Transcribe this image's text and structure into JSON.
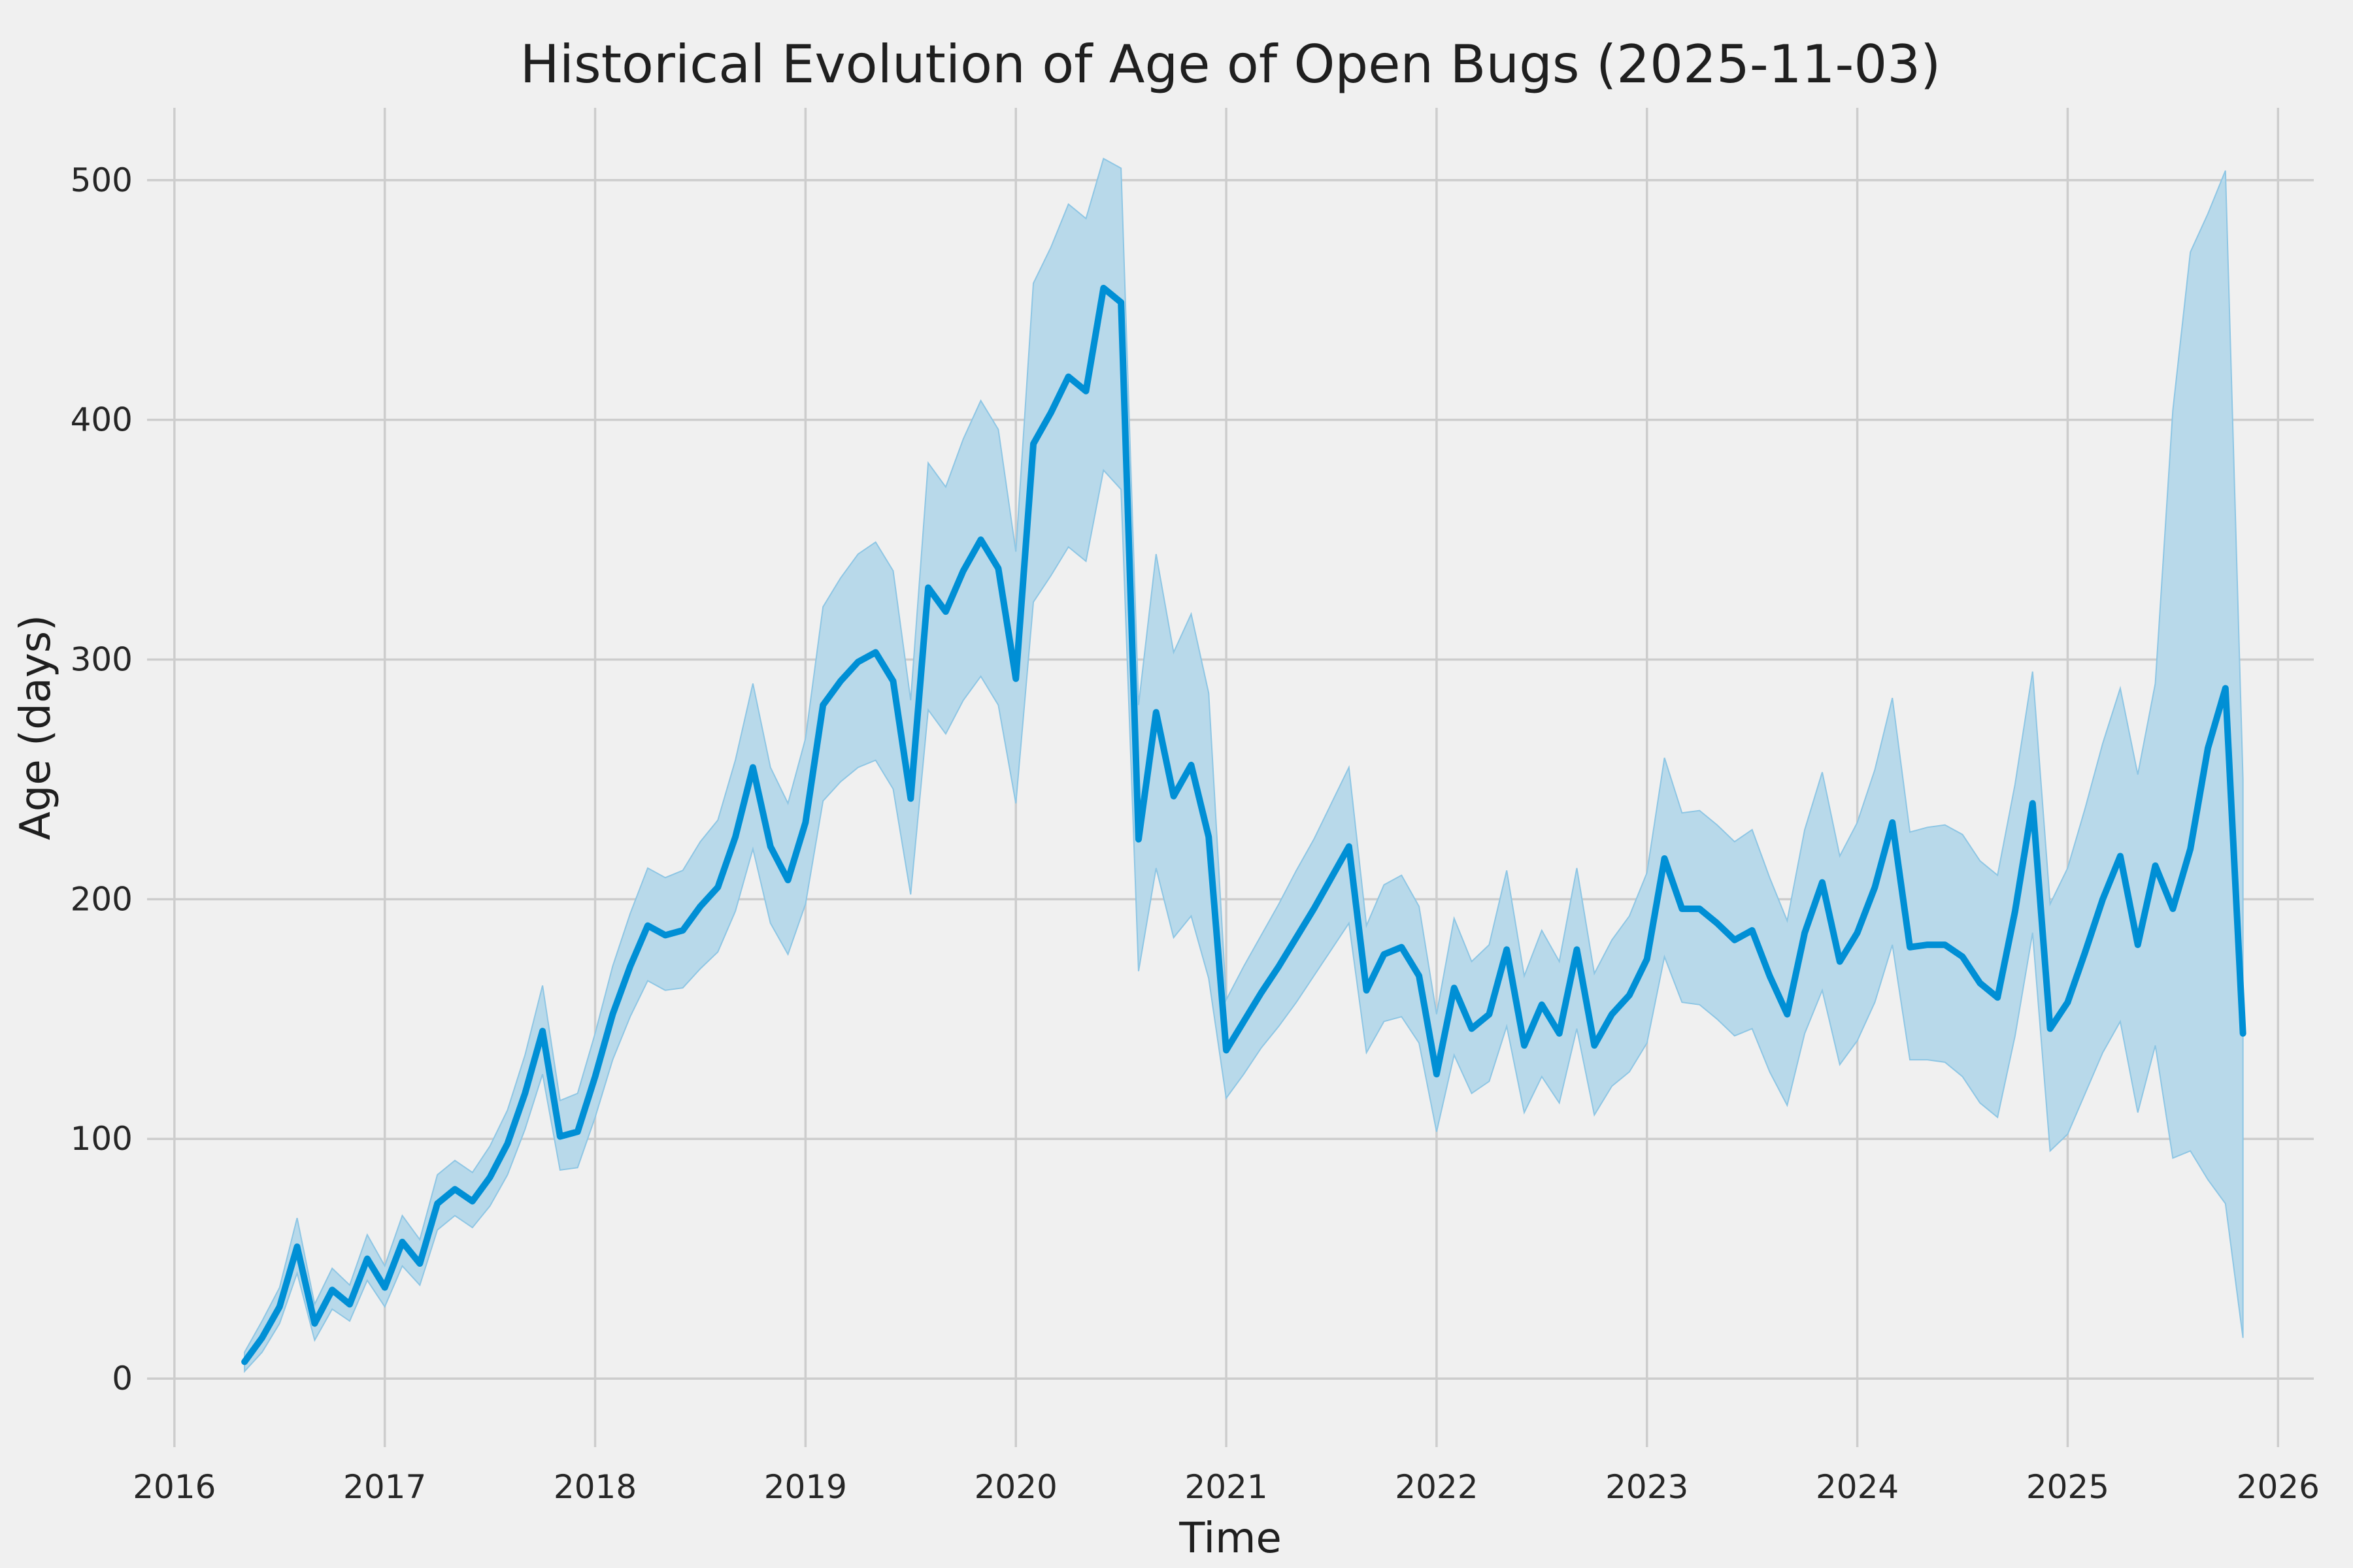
{
  "figure": {
    "background_color": "#f0f0f0",
    "grid_color": "#cdcdcd",
    "text_color": "#262626"
  },
  "chart_data": {
    "type": "line",
    "title": "Historical Evolution of Age of Open Bugs (2025-11-03)",
    "xlabel": "Time",
    "ylabel": "Age (days)",
    "legend_position": "none",
    "grid": true,
    "x_ticks": [
      2016,
      2017,
      2018,
      2019,
      2020,
      2021,
      2022,
      2023,
      2024,
      2025,
      2026
    ],
    "y_ticks": [
      0,
      100,
      200,
      300,
      400,
      500
    ],
    "xlim": [
      2015.87,
      2026.17
    ],
    "ylim": [
      -28.6,
      530.2
    ],
    "line_color": "#008FD5",
    "band_fill_color": "#b8d9ea",
    "band_edge_color": "#8ec6e4",
    "series": [
      {
        "name": "mean-open-bug-age",
        "style": "line-with-confidence-band",
        "dates": [
          "2016-05",
          "2016-06",
          "2016-07",
          "2016-08",
          "2016-09",
          "2016-10",
          "2016-11",
          "2016-12",
          "2017-01",
          "2017-02",
          "2017-03",
          "2017-04",
          "2017-05",
          "2017-06",
          "2017-07",
          "2017-08",
          "2017-09",
          "2017-10",
          "2017-11",
          "2017-12",
          "2018-01",
          "2018-02",
          "2018-03",
          "2018-04",
          "2018-05",
          "2018-06",
          "2018-07",
          "2018-08",
          "2018-09",
          "2018-10",
          "2018-11",
          "2018-12",
          "2019-01",
          "2019-02",
          "2019-03",
          "2019-04",
          "2019-05",
          "2019-06",
          "2019-07",
          "2019-08",
          "2019-09",
          "2019-10",
          "2019-11",
          "2019-12",
          "2020-01",
          "2020-02",
          "2020-03",
          "2020-04",
          "2020-05",
          "2020-06",
          "2020-07",
          "2020-08",
          "2020-09",
          "2020-10",
          "2020-11",
          "2020-12",
          "2021-01",
          "2021-02",
          "2021-03",
          "2021-04",
          "2021-05",
          "2021-06",
          "2021-07",
          "2021-08",
          "2021-09",
          "2021-10",
          "2021-11",
          "2021-12",
          "2022-01",
          "2022-02",
          "2022-03",
          "2022-04",
          "2022-05",
          "2022-06",
          "2022-07",
          "2022-08",
          "2022-09",
          "2022-10",
          "2022-11",
          "2022-12",
          "2023-01",
          "2023-02",
          "2023-03",
          "2023-04",
          "2023-05",
          "2023-06",
          "2023-07",
          "2023-08",
          "2023-09",
          "2023-10",
          "2023-11",
          "2023-12",
          "2024-01",
          "2024-02",
          "2024-03",
          "2024-04",
          "2024-05",
          "2024-06",
          "2024-07",
          "2024-08",
          "2024-09",
          "2024-10",
          "2024-11",
          "2024-12",
          "2025-01",
          "2025-02",
          "2025-03",
          "2025-04",
          "2025-05",
          "2025-06",
          "2025-07",
          "2025-08",
          "2025-09",
          "2025-10",
          "2025-11"
        ],
        "values": [
          7,
          17,
          30,
          55,
          23,
          37,
          31,
          50,
          38,
          57,
          48,
          73,
          79,
          74,
          84,
          98,
          119,
          145,
          101,
          103,
          126,
          152,
          172,
          189,
          185,
          187,
          197,
          205,
          226,
          255,
          222,
          208,
          232,
          281,
          291,
          299,
          303,
          291,
          242,
          330,
          320,
          337,
          350,
          338,
          292,
          390,
          403,
          418,
          412,
          455,
          449,
          225,
          278,
          243,
          256,
          226,
          137,
          149,
          161,
          172,
          184,
          196,
          209,
          222,
          162,
          177,
          180,
          168,
          127,
          163,
          146,
          152,
          179,
          139,
          156,
          144,
          179,
          139,
          152,
          160,
          175,
          217,
          196,
          196,
          190,
          183,
          187,
          168,
          152,
          186,
          207,
          174,
          186,
          205,
          232,
          180,
          181,
          181,
          176,
          165,
          159,
          195,
          240,
          146,
          157,
          178,
          200,
          218,
          181,
          214,
          196,
          221,
          263,
          288,
          144
        ],
        "lower": [
          3,
          11,
          23,
          44,
          16,
          29,
          24,
          41,
          30,
          47,
          39,
          62,
          68,
          63,
          72,
          85,
          104,
          127,
          87,
          88,
          109,
          133,
          151,
          166,
          162,
          163,
          171,
          178,
          195,
          221,
          190,
          177,
          198,
          241,
          249,
          255,
          258,
          246,
          202,
          279,
          269,
          283,
          293,
          281,
          240,
          324,
          335,
          347,
          341,
          379,
          371,
          170,
          213,
          184,
          193,
          167,
          117,
          127,
          138,
          147,
          157,
          168,
          179,
          190,
          136,
          149,
          151,
          140,
          103,
          135,
          119,
          124,
          147,
          111,
          126,
          115,
          146,
          110,
          122,
          128,
          140,
          176,
          157,
          156,
          150,
          143,
          146,
          128,
          114,
          144,
          162,
          131,
          141,
          157,
          181,
          133,
          133,
          132,
          126,
          115,
          109,
          143,
          186,
          95,
          102,
          119,
          136,
          149,
          111,
          139,
          92,
          95,
          83,
          73,
          17
        ],
        "upper": [
          11,
          24,
          38,
          67,
          31,
          46,
          39,
          60,
          47,
          68,
          58,
          85,
          91,
          86,
          97,
          112,
          135,
          164,
          116,
          119,
          144,
          172,
          194,
          213,
          209,
          212,
          224,
          233,
          258,
          290,
          255,
          240,
          267,
          322,
          334,
          344,
          349,
          337,
          283,
          382,
          372,
          392,
          408,
          396,
          345,
          457,
          472,
          490,
          484,
          509,
          505,
          281,
          344,
          303,
          319,
          286,
          158,
          172,
          185,
          198,
          212,
          225,
          240,
          255,
          189,
          206,
          210,
          197,
          152,
          192,
          174,
          181,
          212,
          168,
          187,
          174,
          213,
          169,
          183,
          193,
          211,
          259,
          236,
          237,
          231,
          224,
          229,
          209,
          191,
          229,
          253,
          218,
          232,
          254,
          284,
          228,
          230,
          231,
          227,
          216,
          210,
          248,
          295,
          198,
          213,
          238,
          265,
          288,
          252,
          290,
          404,
          470,
          486,
          504,
          250
        ]
      }
    ]
  }
}
